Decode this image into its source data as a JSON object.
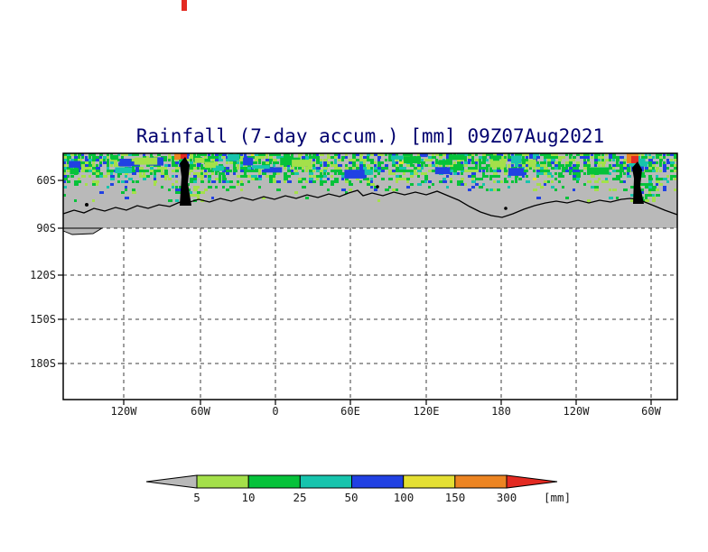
{
  "title": "Rainfall (7-day accum.) [mm] 09Z07Aug2021",
  "axes": {
    "y_ticks": [
      "60S",
      "90S",
      "120S",
      "150S",
      "180S"
    ],
    "x_ticks": [
      "120W",
      "60W",
      "0",
      "60E",
      "120E",
      "180",
      "120W",
      "60W"
    ]
  },
  "legend": {
    "tick_labels": [
      "5",
      "10",
      "25",
      "50",
      "100",
      "150",
      "300"
    ],
    "unit": "[mm]",
    "levels": [
      {
        "range": "< 5",
        "color": "#b9b9b9"
      },
      {
        "range": "5-10",
        "color": "#a4e04a"
      },
      {
        "range": "10-25",
        "color": "#06c23a"
      },
      {
        "range": "25-50",
        "color": "#17c4ad"
      },
      {
        "range": "50-100",
        "color": "#2141e3"
      },
      {
        "range": "100-150",
        "color": "#e4df33"
      },
      {
        "range": "150-300",
        "color": "#ec8422"
      },
      {
        "range": "> 300",
        "color": "#e32a22"
      }
    ]
  },
  "map": {
    "region_colors": {
      "no_data_land": "#b9b9b9",
      "coastline": "#000000",
      "grid": "#3c3c3c",
      "frame": "#000000"
    }
  }
}
